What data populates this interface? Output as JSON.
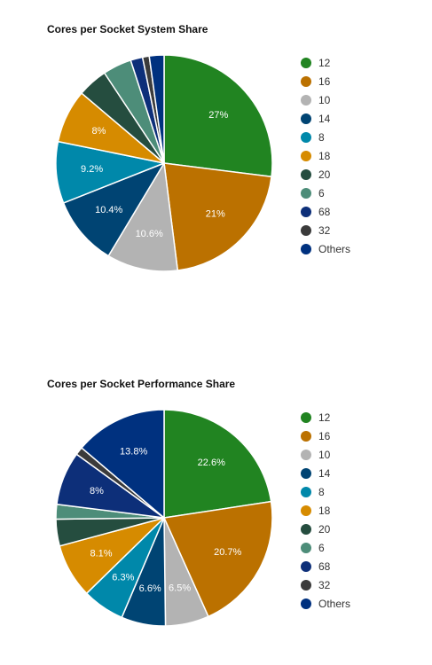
{
  "chart_data": [
    {
      "type": "pie",
      "title": "Cores per Socket System Share",
      "categories": [
        "12",
        "16",
        "10",
        "14",
        "8",
        "18",
        "20",
        "6",
        "68",
        "32",
        "Others"
      ],
      "values": [
        27,
        21,
        10.6,
        10.4,
        9.2,
        8,
        4.5,
        4.3,
        1.8,
        1.0,
        2.2
      ],
      "data_labels": [
        "27%",
        "21%",
        "10.6%",
        "10.4%",
        "9.2%",
        "8%",
        "",
        "",
        "",
        "",
        ""
      ],
      "colors": [
        "#218421",
        "#BB7100",
        "#B3B3B3",
        "#004473",
        "#0088AA",
        "#D68B00",
        "#254D3F",
        "#4D8D79",
        "#0D2F79",
        "#3B3B3B",
        "#00317F"
      ],
      "legend_position": "right"
    },
    {
      "type": "pie",
      "title": "Cores per Socket Performance Share",
      "categories": [
        "12",
        "16",
        "10",
        "14",
        "8",
        "18",
        "20",
        "6",
        "68",
        "32",
        "Others"
      ],
      "values": [
        22.6,
        20.7,
        6.5,
        6.6,
        6.3,
        8.1,
        4,
        2.2,
        8,
        1.2,
        13.8
      ],
      "data_labels": [
        "22.6%",
        "20.7%",
        "6.5%",
        "6.6%",
        "6.3%",
        "8.1%",
        "",
        "",
        "8%",
        "",
        "13.8%"
      ],
      "colors": [
        "#218421",
        "#BB7100",
        "#B3B3B3",
        "#004473",
        "#0088AA",
        "#D68B00",
        "#254D3F",
        "#4D8D79",
        "#0D2F79",
        "#3B3B3B",
        "#00317F"
      ],
      "legend_position": "right"
    }
  ]
}
